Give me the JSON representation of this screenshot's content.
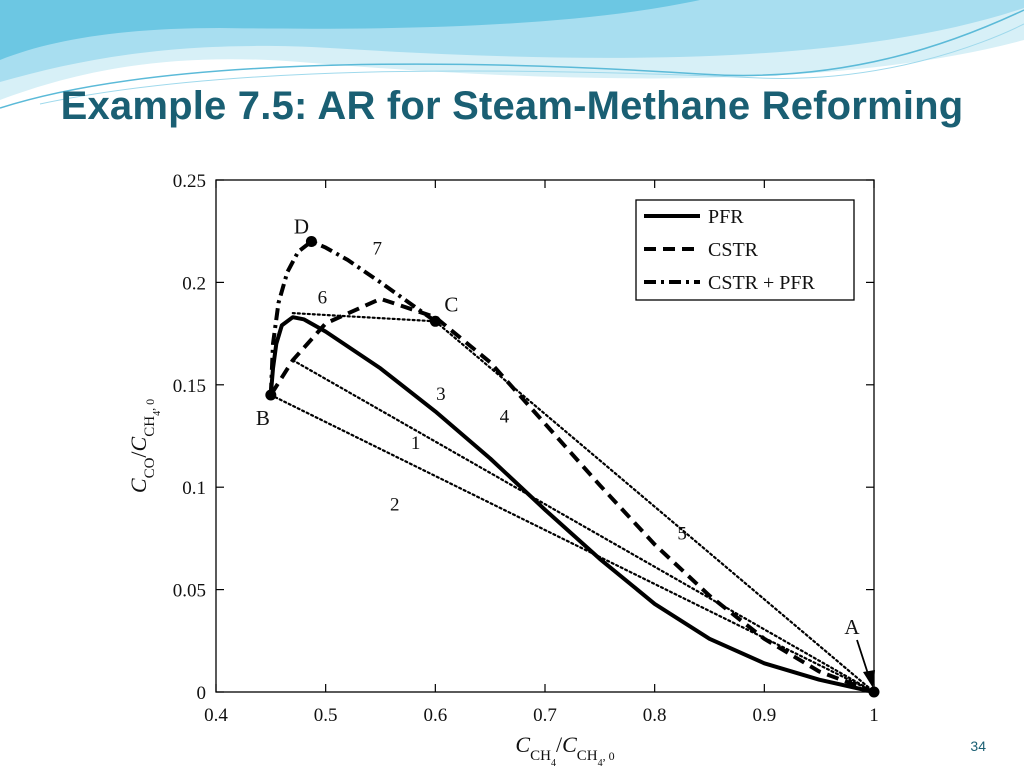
{
  "slide": {
    "title": "Example 7.5: AR for Steam-Methane Reforming",
    "page_number": "34"
  },
  "colors": {
    "title": "#1a5f73",
    "wave_light": "#bfe6f2",
    "wave_mid": "#7fd0e6",
    "wave_dark": "#3fb4d6",
    "curve": "#000000"
  },
  "chart_data": {
    "type": "line",
    "title": "",
    "xlabel": "C_CH4/C_CH4,0",
    "ylabel": "C_CO/C_CH4,0",
    "xlim": [
      0.4,
      1.0
    ],
    "ylim": [
      0,
      0.25
    ],
    "x_ticks": [
      "0.4",
      "0.5",
      "0.6",
      "0.7",
      "0.8",
      "0.9",
      "1"
    ],
    "y_ticks": [
      "0",
      "0.05",
      "0.1",
      "0.15",
      "0.2",
      "0.25"
    ],
    "grid": false,
    "legend_position": "top-right",
    "legend": [
      {
        "label": "PFR",
        "style": "solid"
      },
      {
        "label": "CSTR",
        "style": "dashed"
      },
      {
        "label": "CSTR + PFR",
        "style": "dashdot"
      }
    ],
    "series": [
      {
        "name": "PFR",
        "style": "solid",
        "x": [
          1.0,
          0.95,
          0.9,
          0.85,
          0.8,
          0.75,
          0.7,
          0.65,
          0.6,
          0.55,
          0.5,
          0.48,
          0.47,
          0.46,
          0.455,
          0.452,
          0.45
        ],
        "y": [
          0.0,
          0.006,
          0.014,
          0.026,
          0.043,
          0.065,
          0.089,
          0.114,
          0.137,
          0.158,
          0.176,
          0.182,
          0.183,
          0.179,
          0.17,
          0.158,
          0.145
        ]
      },
      {
        "name": "CSTR",
        "style": "dashed",
        "x": [
          1.0,
          0.95,
          0.9,
          0.85,
          0.8,
          0.75,
          0.7,
          0.65,
          0.6,
          0.55,
          0.5,
          0.47,
          0.45
        ],
        "y": [
          0.0,
          0.01,
          0.026,
          0.047,
          0.072,
          0.101,
          0.131,
          0.161,
          0.183,
          0.192,
          0.18,
          0.162,
          0.145
        ]
      },
      {
        "name": "CSTR + PFR",
        "style": "dashdot",
        "x": [
          0.6,
          0.55,
          0.52,
          0.5,
          0.487,
          0.475,
          0.465,
          0.457,
          0.452,
          0.45
        ],
        "y": [
          0.181,
          0.2,
          0.211,
          0.217,
          0.22,
          0.215,
          0.205,
          0.19,
          0.17,
          0.145
        ]
      },
      {
        "name": "",
        "style": "dotted",
        "x": [
          0.45,
          1.0
        ],
        "y": [
          0.145,
          0.0
        ]
      },
      {
        "name": "",
        "style": "dotted",
        "x": [
          0.47,
          1.0
        ],
        "y": [
          0.162,
          0.0
        ]
      },
      {
        "name": "",
        "style": "dotted",
        "x": [
          0.6,
          1.0
        ],
        "y": [
          0.181,
          0.0
        ]
      },
      {
        "name": "",
        "style": "dotted",
        "x": [
          0.47,
          0.6
        ],
        "y": [
          0.185,
          0.181
        ]
      }
    ],
    "points": [
      {
        "label": "A",
        "x": 1.0,
        "y": 0.0
      },
      {
        "label": "B",
        "x": 0.45,
        "y": 0.145
      },
      {
        "label": "C",
        "x": 0.6,
        "y": 0.181
      },
      {
        "label": "D",
        "x": 0.487,
        "y": 0.22
      }
    ],
    "annotations": [
      {
        "text": "1",
        "x": 0.582,
        "y": 0.122
      },
      {
        "text": "2",
        "x": 0.563,
        "y": 0.092
      },
      {
        "text": "3",
        "x": 0.605,
        "y": 0.146
      },
      {
        "text": "4",
        "x": 0.663,
        "y": 0.135
      },
      {
        "text": "5",
        "x": 0.825,
        "y": 0.078
      },
      {
        "text": "6",
        "x": 0.497,
        "y": 0.193
      },
      {
        "text": "7",
        "x": 0.547,
        "y": 0.217
      }
    ]
  }
}
